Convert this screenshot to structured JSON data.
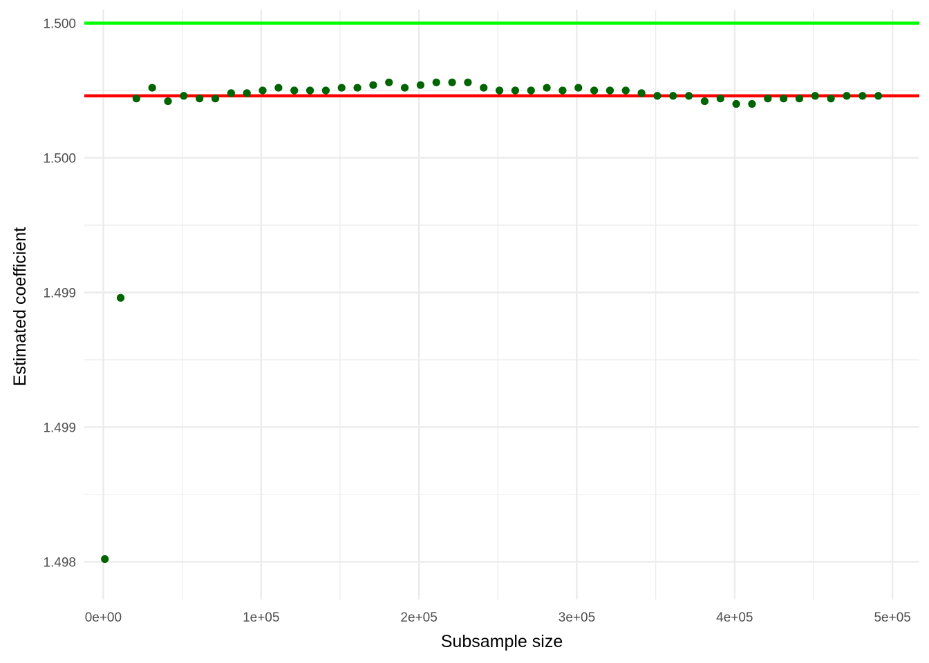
{
  "chart_data": {
    "type": "scatter",
    "title": "",
    "xlabel": "Subsample size",
    "ylabel": "Estimated coefficient",
    "xlim": [
      -12000,
      517000
    ],
    "ylim": [
      1.49786,
      1.50005
    ],
    "grid": true,
    "x_major_ticks": [
      0,
      100000,
      200000,
      300000,
      400000,
      500000
    ],
    "x_tick_labels": [
      "0e+00",
      "1e+05",
      "2e+05",
      "3e+05",
      "4e+05",
      "5e+05"
    ],
    "x_minor_ticks": [
      50000,
      150000,
      250000,
      350000,
      450000
    ],
    "y_major_ticks": [
      1.498,
      1.4985,
      1.499,
      1.4995,
      1.5
    ],
    "y_tick_labels": [
      "1.498",
      "1.499",
      "1.499",
      "1.500",
      "1.500"
    ],
    "y_minor_ticks": [
      1.49825,
      1.49875,
      1.49925,
      1.49975
    ],
    "reference_lines": [
      {
        "y": 1.5,
        "color": "#00ff00"
      },
      {
        "y": 1.49973,
        "color": "#ff0000"
      }
    ],
    "point_color": "#006400",
    "x": [
      1000,
      11000,
      21000,
      31000,
      41000,
      51000,
      61000,
      71000,
      81000,
      91000,
      101000,
      111000,
      121000,
      131000,
      141000,
      151000,
      161000,
      171000,
      181000,
      191000,
      201000,
      211000,
      221000,
      231000,
      241000,
      251000,
      261000,
      271000,
      281000,
      291000,
      301000,
      311000,
      321000,
      331000,
      341000,
      351000,
      361000,
      371000,
      381000,
      391000,
      401000,
      411000,
      421000,
      431000,
      441000,
      451000,
      461000,
      471000,
      481000,
      491000
    ],
    "y": [
      1.49801,
      1.49898,
      1.49972,
      1.49976,
      1.49971,
      1.49973,
      1.49972,
      1.49972,
      1.49974,
      1.49974,
      1.49975,
      1.49976,
      1.49975,
      1.49975,
      1.49975,
      1.49976,
      1.49976,
      1.49977,
      1.49978,
      1.49976,
      1.49977,
      1.49978,
      1.49978,
      1.49978,
      1.49976,
      1.49975,
      1.49975,
      1.49975,
      1.49976,
      1.49975,
      1.49976,
      1.49975,
      1.49975,
      1.49975,
      1.49974,
      1.49973,
      1.49973,
      1.49973,
      1.49971,
      1.49972,
      1.4997,
      1.4997,
      1.49972,
      1.49972,
      1.49972,
      1.49973,
      1.49972,
      1.49973,
      1.49973,
      1.49973
    ]
  }
}
